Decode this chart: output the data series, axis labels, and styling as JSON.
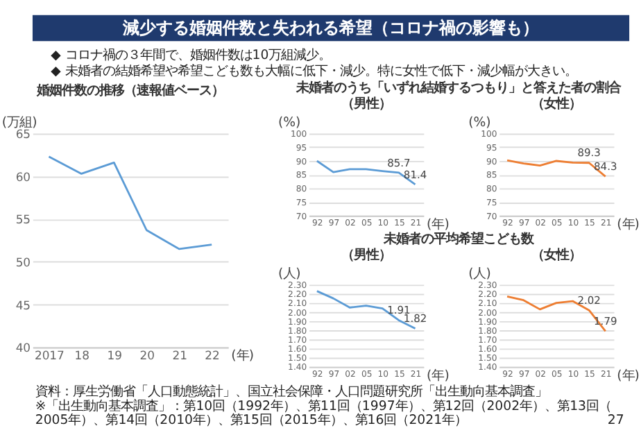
{
  "chart_data": [
    {
      "type": "other",
      "title": "減少する婚姻件数と失われる希望（コロナ禍の影響も）",
      "annotations": [
        "◆ コロナ禍の３年間で、婚姻件数は10万組減少。",
        "◆ 未婚者の結婚希望や希望こども数も大幅に低下・減少。特に女性で低下・減少幅が大きい。"
      ]
    },
    {
      "type": "line",
      "title": "婚姻件数の推移（速報値ベース）",
      "ylabel": "(万組)",
      "xlabel": "(年)",
      "categories": [
        "2017",
        "18",
        "19",
        "20",
        "21",
        "22"
      ],
      "series": [
        {
          "color": "#5b9bd5",
          "values": [
            62.3,
            60.3,
            61.6,
            53.7,
            51.5,
            52.0
          ]
        }
      ],
      "ylim": [
        40,
        65
      ],
      "yticks": [
        40,
        45,
        50,
        55,
        60,
        65
      ],
      "grid": "y"
    },
    {
      "type": "line",
      "title": "未婚者のうち「いずれ結婚するつもり」と答えた者の割合",
      "subtitle": "（男性）",
      "ylabel": "(%)",
      "xlabel": "(年)",
      "categories": [
        "92",
        "97",
        "02",
        "05",
        "10",
        "15",
        "21"
      ],
      "series": [
        {
          "color": "#5b9bd5",
          "values": [
            90.0,
            85.9,
            87.0,
            87.0,
            86.3,
            85.7,
            81.4
          ],
          "value_labels": [
            null,
            null,
            null,
            null,
            null,
            "85.7",
            "81.4"
          ]
        }
      ],
      "ylim": [
        70,
        100
      ],
      "yticks": [
        70,
        75,
        80,
        85,
        90,
        95,
        100
      ],
      "grid": "y"
    },
    {
      "type": "line",
      "subtitle": "（女性）",
      "ylabel": "(%)",
      "xlabel": "(年)",
      "categories": [
        "92",
        "97",
        "02",
        "05",
        "10",
        "15",
        "21"
      ],
      "series": [
        {
          "color": "#ed7d31",
          "values": [
            90.2,
            89.1,
            88.3,
            90.0,
            89.4,
            89.3,
            84.3
          ],
          "value_labels": [
            null,
            null,
            null,
            null,
            null,
            "89.3",
            "84.3"
          ]
        }
      ],
      "ylim": [
        70,
        100
      ],
      "yticks": [
        70,
        75,
        80,
        85,
        90,
        95,
        100
      ],
      "grid": "y"
    },
    {
      "type": "line",
      "title": "未婚者の平均希望こども数",
      "subtitle": "（男性）",
      "ylabel": "(人)",
      "xlabel": "(年)",
      "categories": [
        "92",
        "97",
        "02",
        "05",
        "10",
        "15",
        "21"
      ],
      "series": [
        {
          "color": "#5b9bd5",
          "values": [
            2.23,
            2.15,
            2.05,
            2.07,
            2.04,
            1.91,
            1.82
          ],
          "value_labels": [
            null,
            null,
            null,
            null,
            null,
            "1.91",
            "1.82"
          ]
        }
      ],
      "grid": "y",
      "ylim": [
        1.4,
        2.3
      ],
      "yticks": [
        {
          "value": 1.4,
          "label": "1.40"
        },
        {
          "value": 1.5,
          "label": "1.50"
        },
        {
          "value": 1.6,
          "label": "1.60"
        },
        {
          "value": 1.7,
          "label": "1.70"
        },
        {
          "value": 1.8,
          "label": "1.80"
        },
        {
          "value": 1.9,
          "label": "1.90"
        },
        {
          "value": 2.0,
          "label": "2.00"
        },
        {
          "value": 2.1,
          "label": "2.10"
        },
        {
          "value": 2.2,
          "label": "2.20"
        },
        {
          "value": 2.3,
          "label": "2.30"
        }
      ]
    },
    {
      "type": "line",
      "subtitle": "（女性）",
      "ylabel": "(人)",
      "xlabel": "(年)",
      "categories": [
        "92",
        "97",
        "02",
        "05",
        "10",
        "15",
        "21"
      ],
      "series": [
        {
          "color": "#ed7d31",
          "values": [
            2.17,
            2.13,
            2.03,
            2.1,
            2.12,
            2.02,
            1.79
          ],
          "value_labels": [
            null,
            null,
            null,
            null,
            null,
            "2.02",
            "1.79"
          ]
        }
      ],
      "grid": "y",
      "ylim": [
        1.4,
        2.3
      ],
      "yticks": [
        {
          "value": 1.4,
          "label": "1.40"
        },
        {
          "value": 1.5,
          "label": "1.50"
        },
        {
          "value": 1.6,
          "label": "1.60"
        },
        {
          "value": 1.7,
          "label": "1.70"
        },
        {
          "value": 1.8,
          "label": "1.80"
        },
        {
          "value": 1.9,
          "label": "1.90"
        },
        {
          "value": 2.0,
          "label": "2.00"
        },
        {
          "value": 2.1,
          "label": "2.10"
        },
        {
          "value": 2.2,
          "label": "2.20"
        },
        {
          "value": 2.3,
          "label": "2.30"
        }
      ]
    },
    {
      "type": "other",
      "annotations": [
        "資料：厚生労働省「人口動態統計」、国立社会保障・人口問題研究所「出生動向基本調査」",
        "※「出生動向基本調査」：第10回（1992年）、第11回（1997年）、第12回（2002年）、第13回（2005年）、第14回（2010年）、第15回（2015年）、第16回（2021年）",
        "27"
      ]
    }
  ]
}
